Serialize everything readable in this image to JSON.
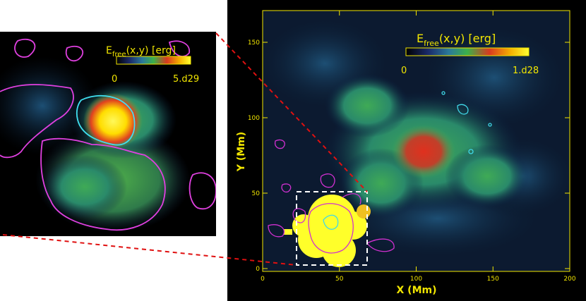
{
  "inset": {
    "colorbar": {
      "label_main": "E",
      "label_sub": "free",
      "label_rest": "(x,y) [erg]",
      "min": "0",
      "max": "5.d29"
    }
  },
  "main": {
    "colorbar": {
      "label_main": "E",
      "label_sub": "free",
      "label_rest": "(x,y) [erg]",
      "min": "0",
      "max": "1.d28"
    },
    "x_axis": {
      "label": "X (Mm)",
      "ticks": [
        "0",
        "50",
        "100",
        "150",
        "200"
      ]
    },
    "y_axis": {
      "label": "Y (Mm)",
      "ticks": [
        "0",
        "50",
        "100",
        "150"
      ]
    }
  },
  "colors": {
    "axis": "#f2e600",
    "contour_negative": "#e040e0",
    "contour_positive": "#40e0f0",
    "zoom_line": "#e01010",
    "zoom_box": "#ffffff"
  }
}
